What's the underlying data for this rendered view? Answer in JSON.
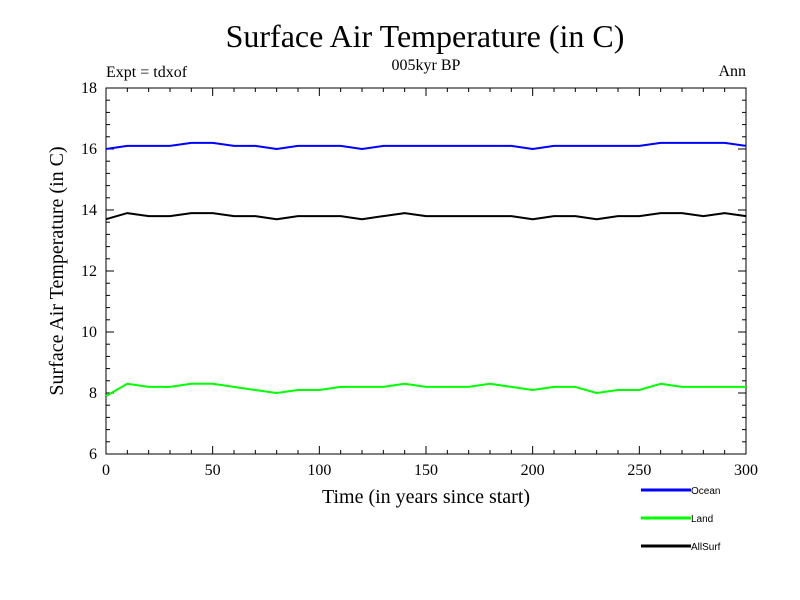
{
  "chart_data": {
    "type": "line",
    "title": "Surface Air Temperature (in C)",
    "subtitle": "005kyr BP",
    "left_note": "Expt = tdxof",
    "right_note": "Ann",
    "xlabel": "Time (in years since start)",
    "ylabel": "Surface Air Temperature (in C)",
    "xlim": [
      0,
      300
    ],
    "ylim": [
      6,
      18
    ],
    "xticks": [
      0,
      50,
      100,
      150,
      200,
      250,
      300
    ],
    "yticks": [
      6,
      8,
      10,
      12,
      14,
      16,
      18
    ],
    "grid": false,
    "legend_position": "bottom-right",
    "series": [
      {
        "name": "Ocean",
        "color": "#0000ff",
        "x": [
          0,
          10,
          20,
          30,
          40,
          50,
          60,
          70,
          80,
          90,
          100,
          110,
          120,
          130,
          140,
          150,
          160,
          170,
          180,
          190,
          200,
          210,
          220,
          230,
          240,
          250,
          260,
          270,
          280,
          290,
          300
        ],
        "values": [
          16.0,
          16.1,
          16.1,
          16.1,
          16.2,
          16.2,
          16.1,
          16.1,
          16.0,
          16.1,
          16.1,
          16.1,
          16.0,
          16.1,
          16.1,
          16.1,
          16.1,
          16.1,
          16.1,
          16.1,
          16.0,
          16.1,
          16.1,
          16.1,
          16.1,
          16.1,
          16.2,
          16.2,
          16.2,
          16.2,
          16.1
        ]
      },
      {
        "name": "Land",
        "color": "#00ff00",
        "x": [
          0,
          10,
          20,
          30,
          40,
          50,
          60,
          70,
          80,
          90,
          100,
          110,
          120,
          130,
          140,
          150,
          160,
          170,
          180,
          190,
          200,
          210,
          220,
          230,
          240,
          250,
          260,
          270,
          280,
          290,
          300
        ],
        "values": [
          7.9,
          8.3,
          8.2,
          8.2,
          8.3,
          8.3,
          8.2,
          8.1,
          8.0,
          8.1,
          8.1,
          8.2,
          8.2,
          8.2,
          8.3,
          8.2,
          8.2,
          8.2,
          8.3,
          8.2,
          8.1,
          8.2,
          8.2,
          8.0,
          8.1,
          8.1,
          8.3,
          8.2,
          8.2,
          8.2,
          8.2
        ]
      },
      {
        "name": "AllSurf",
        "color": "#000000",
        "x": [
          0,
          10,
          20,
          30,
          40,
          50,
          60,
          70,
          80,
          90,
          100,
          110,
          120,
          130,
          140,
          150,
          160,
          170,
          180,
          190,
          200,
          210,
          220,
          230,
          240,
          250,
          260,
          270,
          280,
          290,
          300
        ],
        "values": [
          13.7,
          13.9,
          13.8,
          13.8,
          13.9,
          13.9,
          13.8,
          13.8,
          13.7,
          13.8,
          13.8,
          13.8,
          13.7,
          13.8,
          13.9,
          13.8,
          13.8,
          13.8,
          13.8,
          13.8,
          13.7,
          13.8,
          13.8,
          13.7,
          13.8,
          13.8,
          13.9,
          13.9,
          13.8,
          13.9,
          13.8
        ]
      }
    ]
  }
}
